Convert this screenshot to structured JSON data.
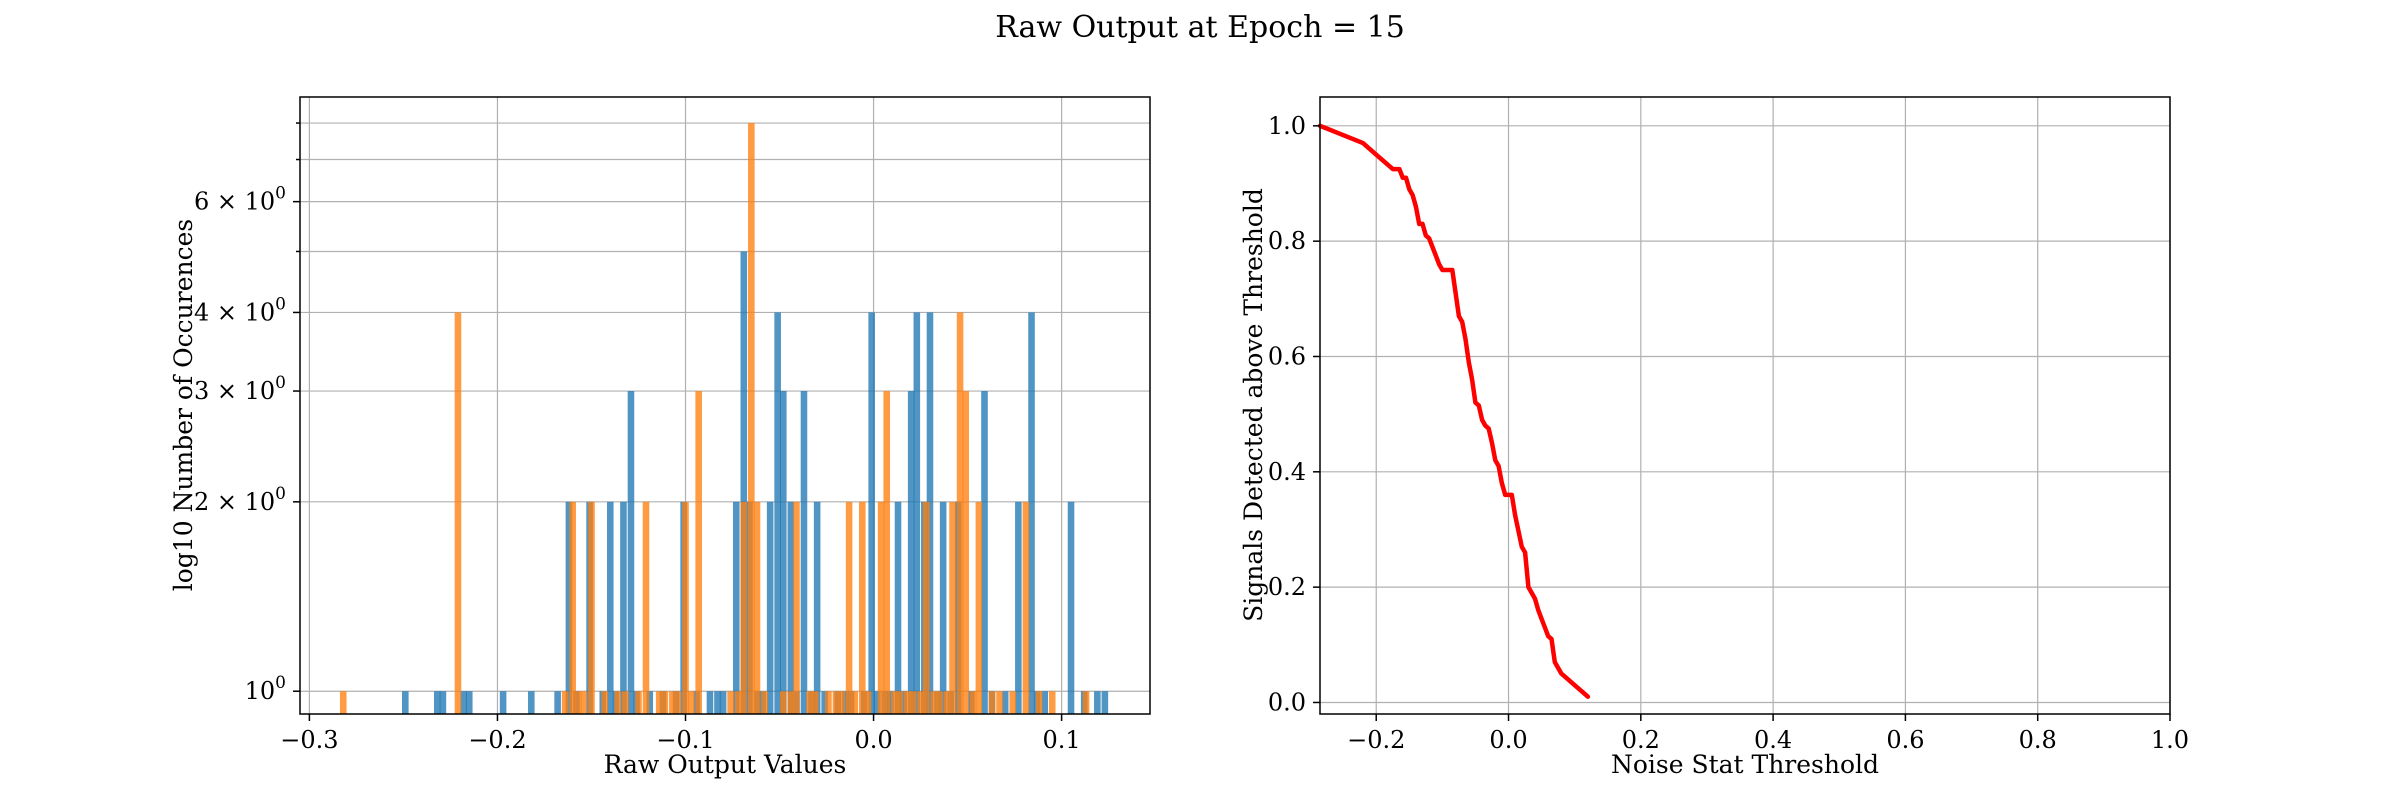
{
  "figure": {
    "suptitle": "Raw Output at Epoch = 15"
  },
  "chart_data": [
    {
      "type": "bar",
      "subtype": "histogram",
      "title": "",
      "xlabel": "Raw Output Values",
      "ylabel": "log10 Number of Occurences",
      "yscale": "log",
      "grid": true,
      "xlim": [
        -0.305,
        0.147
      ],
      "ylim": [
        0.92,
        8.8
      ],
      "xticks": [
        {
          "v": -0.3,
          "label": "−0.3"
        },
        {
          "v": -0.2,
          "label": "−0.2"
        },
        {
          "v": -0.1,
          "label": "−0.1"
        },
        {
          "v": 0.0,
          "label": "0.0"
        },
        {
          "v": 0.1,
          "label": "0.1"
        }
      ],
      "yticks": [
        {
          "v": 1,
          "base": "10",
          "exp": "0"
        },
        {
          "v": 2,
          "base": "2 × 10",
          "exp": "0"
        },
        {
          "v": 3,
          "base": "3 × 10",
          "exp": "0"
        },
        {
          "v": 4,
          "base": "4 × 10",
          "exp": "0"
        },
        {
          "v": 6,
          "base": "6 × 10",
          "exp": "0"
        }
      ],
      "y_minor_gridlines": [
        5,
        7,
        8
      ],
      "bin_width": 0.0035,
      "series": [
        {
          "color": "#1f77b4",
          "bars": [
            [
              -0.249,
              1
            ],
            [
              -0.232,
              1
            ],
            [
              -0.229,
              1
            ],
            [
              -0.218,
              1
            ],
            [
              -0.215,
              1
            ],
            [
              -0.197,
              1
            ],
            [
              -0.182,
              1
            ],
            [
              -0.168,
              1
            ],
            [
              -0.162,
              2
            ],
            [
              -0.158,
              1
            ],
            [
              -0.151,
              2
            ],
            [
              -0.144,
              1
            ],
            [
              -0.14,
              2
            ],
            [
              -0.137,
              1
            ],
            [
              -0.133,
              2
            ],
            [
              -0.129,
              3
            ],
            [
              -0.126,
              1
            ],
            [
              -0.119,
              1
            ],
            [
              -0.112,
              1
            ],
            [
              -0.105,
              1
            ],
            [
              -0.101,
              2
            ],
            [
              -0.094,
              1
            ],
            [
              -0.087,
              1
            ],
            [
              -0.083,
              1
            ],
            [
              -0.08,
              1
            ],
            [
              -0.073,
              2
            ],
            [
              -0.069,
              5
            ],
            [
              -0.066,
              2
            ],
            [
              -0.062,
              1
            ],
            [
              -0.059,
              1
            ],
            [
              -0.055,
              2
            ],
            [
              -0.051,
              4
            ],
            [
              -0.048,
              3
            ],
            [
              -0.044,
              2
            ],
            [
              -0.041,
              1
            ],
            [
              -0.037,
              3
            ],
            [
              -0.033,
              1
            ],
            [
              -0.03,
              2
            ],
            [
              -0.026,
              1
            ],
            [
              -0.019,
              1
            ],
            [
              -0.015,
              1
            ],
            [
              -0.012,
              1
            ],
            [
              -0.005,
              1
            ],
            [
              -0.001,
              4
            ],
            [
              0.002,
              1
            ],
            [
              0.006,
              1
            ],
            [
              0.009,
              1
            ],
            [
              0.013,
              2
            ],
            [
              0.016,
              1
            ],
            [
              0.02,
              3
            ],
            [
              0.023,
              4
            ],
            [
              0.027,
              2
            ],
            [
              0.03,
              4
            ],
            [
              0.034,
              1
            ],
            [
              0.037,
              2
            ],
            [
              0.041,
              1
            ],
            [
              0.045,
              2
            ],
            [
              0.052,
              1
            ],
            [
              0.059,
              3
            ],
            [
              0.063,
              1
            ],
            [
              0.07,
              1
            ],
            [
              0.077,
              2
            ],
            [
              0.084,
              4
            ],
            [
              0.087,
              1
            ],
            [
              0.091,
              1
            ],
            [
              0.105,
              2
            ],
            [
              0.112,
              1
            ],
            [
              0.119,
              1
            ],
            [
              0.123,
              1
            ]
          ]
        },
        {
          "color": "#ff7f0e",
          "bars": [
            [
              -0.282,
              1
            ],
            [
              -0.221,
              4
            ],
            [
              -0.164,
              1
            ],
            [
              -0.16,
              2
            ],
            [
              -0.157,
              1
            ],
            [
              -0.154,
              1
            ],
            [
              -0.15,
              2
            ],
            [
              -0.143,
              1
            ],
            [
              -0.136,
              1
            ],
            [
              -0.132,
              1
            ],
            [
              -0.125,
              1
            ],
            [
              -0.121,
              2
            ],
            [
              -0.114,
              1
            ],
            [
              -0.111,
              1
            ],
            [
              -0.107,
              1
            ],
            [
              -0.104,
              1
            ],
            [
              -0.1,
              2
            ],
            [
              -0.097,
              1
            ],
            [
              -0.093,
              3
            ],
            [
              -0.076,
              1
            ],
            [
              -0.072,
              1
            ],
            [
              -0.069,
              2
            ],
            [
              -0.065,
              8
            ],
            [
              -0.062,
              2
            ],
            [
              -0.058,
              1
            ],
            [
              -0.048,
              1
            ],
            [
              -0.044,
              1
            ],
            [
              -0.041,
              2
            ],
            [
              -0.034,
              1
            ],
            [
              -0.031,
              1
            ],
            [
              -0.024,
              1
            ],
            [
              -0.02,
              1
            ],
            [
              -0.017,
              1
            ],
            [
              -0.013,
              2
            ],
            [
              -0.01,
              1
            ],
            [
              -0.006,
              2
            ],
            [
              -0.003,
              1
            ],
            [
              0.004,
              2
            ],
            [
              0.007,
              3
            ],
            [
              0.011,
              1
            ],
            [
              0.014,
              1
            ],
            [
              0.018,
              1
            ],
            [
              0.021,
              1
            ],
            [
              0.025,
              1
            ],
            [
              0.028,
              2
            ],
            [
              0.032,
              1
            ],
            [
              0.035,
              1
            ],
            [
              0.039,
              1
            ],
            [
              0.042,
              2
            ],
            [
              0.046,
              4
            ],
            [
              0.049,
              3
            ],
            [
              0.053,
              1
            ],
            [
              0.056,
              2
            ],
            [
              0.063,
              1
            ],
            [
              0.067,
              1
            ],
            [
              0.074,
              1
            ],
            [
              0.081,
              2
            ],
            [
              0.088,
              1
            ],
            [
              0.095,
              1
            ],
            [
              0.113,
              1
            ]
          ]
        }
      ]
    },
    {
      "type": "line",
      "title": "",
      "xlabel": "Noise Stat Threshold",
      "ylabel": "Signals Detected above Threshold",
      "grid": true,
      "xlim": [
        -0.285,
        1.0
      ],
      "ylim": [
        -0.02,
        1.05
      ],
      "xticks": [
        {
          "v": -0.2,
          "label": "−0.2"
        },
        {
          "v": 0.0,
          "label": "0.0"
        },
        {
          "v": 0.2,
          "label": "0.2"
        },
        {
          "v": 0.4,
          "label": "0.4"
        },
        {
          "v": 0.6,
          "label": "0.6"
        },
        {
          "v": 0.8,
          "label": "0.8"
        },
        {
          "v": 1.0,
          "label": "1.0"
        }
      ],
      "yticks": [
        {
          "v": 0.0,
          "label": "0.0"
        },
        {
          "v": 0.2,
          "label": "0.2"
        },
        {
          "v": 0.4,
          "label": "0.4"
        },
        {
          "v": 0.6,
          "label": "0.6"
        },
        {
          "v": 0.8,
          "label": "0.8"
        },
        {
          "v": 1.0,
          "label": "1.0"
        }
      ],
      "series": [
        {
          "color": "#ff0000",
          "x": [
            -0.285,
            -0.22,
            -0.2,
            -0.175,
            -0.165,
            -0.16,
            -0.155,
            -0.15,
            -0.145,
            -0.14,
            -0.135,
            -0.13,
            -0.125,
            -0.12,
            -0.11,
            -0.105,
            -0.1,
            -0.095,
            -0.085,
            -0.075,
            -0.07,
            -0.065,
            -0.06,
            -0.055,
            -0.05,
            -0.045,
            -0.04,
            -0.035,
            -0.03,
            -0.025,
            -0.02,
            -0.015,
            -0.01,
            -0.005,
            0.0,
            0.005,
            0.01,
            0.02,
            0.025,
            0.03,
            0.035,
            0.04,
            0.045,
            0.05,
            0.055,
            0.06,
            0.065,
            0.07,
            0.075,
            0.08,
            0.09,
            0.1,
            0.11,
            0.12
          ],
          "y": [
            1.0,
            0.97,
            0.95,
            0.925,
            0.925,
            0.91,
            0.91,
            0.89,
            0.88,
            0.86,
            0.83,
            0.83,
            0.81,
            0.805,
            0.775,
            0.76,
            0.75,
            0.75,
            0.75,
            0.67,
            0.66,
            0.63,
            0.59,
            0.56,
            0.52,
            0.515,
            0.49,
            0.48,
            0.475,
            0.45,
            0.42,
            0.41,
            0.38,
            0.36,
            0.36,
            0.36,
            0.325,
            0.27,
            0.26,
            0.2,
            0.19,
            0.18,
            0.16,
            0.145,
            0.13,
            0.115,
            0.11,
            0.07,
            0.06,
            0.05,
            0.04,
            0.03,
            0.02,
            0.01
          ]
        }
      ]
    }
  ]
}
